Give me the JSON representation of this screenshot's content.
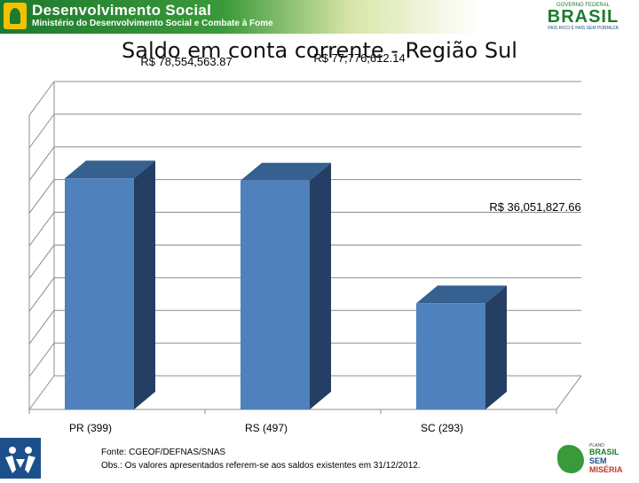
{
  "header": {
    "program_name": "Desenvolvimento Social",
    "ministry": "Ministério do Desenvolvimento Social e Combate à Fome",
    "gov_top": "GOVERNO FEDERAL",
    "gov_name": "BRASIL",
    "gov_motto": "PAÍS RICO É PAÍS SEM POBREZA"
  },
  "footer": {
    "source": "Fonte: CGEOF/DEFNAS/SNAS",
    "note": "Obs.: Os valores apresentados referem-se aos saldos existentes em 31/12/2012.",
    "badge_small": "PLANO",
    "badge_line1": "BRASIL",
    "badge_line2": "SEM",
    "badge_line3": "MISÉRIA"
  },
  "colors": {
    "bar_front": "#4f81bd",
    "bar_side": "#243f63",
    "bar_top": "#36608f",
    "title": "#111111"
  },
  "chart_data": {
    "type": "bar",
    "title": "Saldo em conta corrente - Região Sul",
    "categories": [
      "PR (399)",
      "RS (497)",
      "SC (293)"
    ],
    "values": [
      78554563.87,
      77776612.14,
      36051827.66
    ],
    "data_labels": [
      "R$ 78,554,563.87",
      "R$ 77,776,612.14",
      "R$ 36,051,827.66"
    ],
    "ylim": [
      0,
      100000000
    ],
    "grid": true,
    "legend": "none"
  }
}
